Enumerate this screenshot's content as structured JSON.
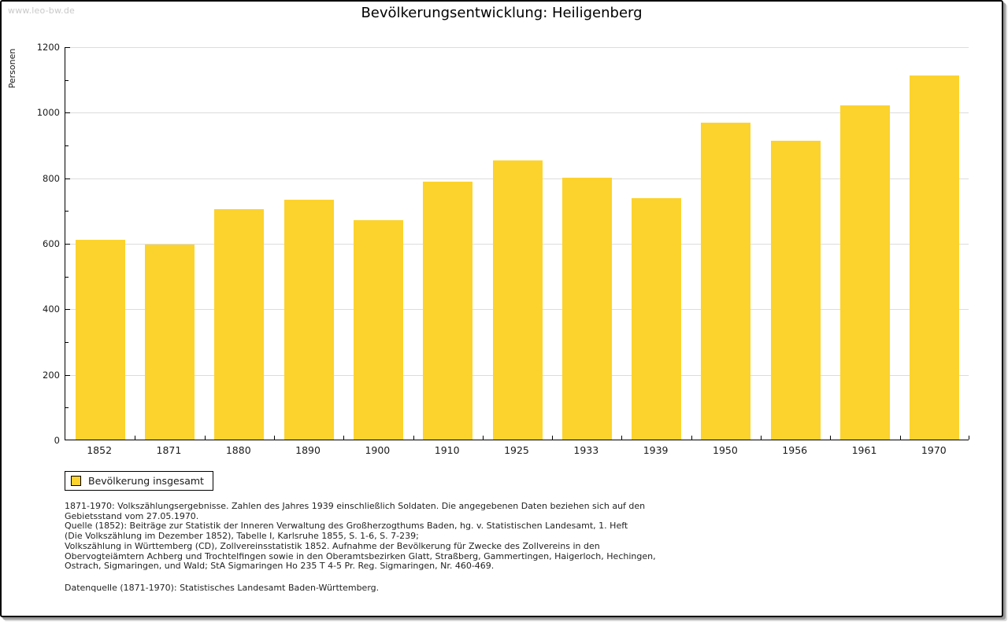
{
  "watermark": "www.leo-bw.de",
  "title": "Bevölkerungsentwicklung: Heiligenberg",
  "chart_data": {
    "type": "bar",
    "title": "Bevölkerungsentwicklung: Heiligenberg",
    "xlabel": "",
    "ylabel": "Personen",
    "ylim": [
      0,
      1200
    ],
    "yticks": [
      0,
      200,
      400,
      600,
      800,
      1000,
      1200
    ],
    "yticks_minor": [
      100,
      300,
      500,
      700,
      900,
      1100
    ],
    "grid": true,
    "legend_position": "bottom-left",
    "categories": [
      "1852",
      "1871",
      "1880",
      "1890",
      "1900",
      "1910",
      "1925",
      "1933",
      "1939",
      "1950",
      "1956",
      "1961",
      "1970"
    ],
    "series": [
      {
        "name": "Bevölkerung insgesamt",
        "values": [
          610,
          595,
          703,
          733,
          670,
          788,
          852,
          800,
          737,
          966,
          911,
          1019,
          1110
        ]
      }
    ]
  },
  "legend": {
    "label": "Bevölkerung insgesamt"
  },
  "footnotes": {
    "lines": [
      "1871-1970: Volkszählungsergebnisse. Zahlen des Jahres 1939 einschließlich Soldaten. Die angegebenen Daten beziehen sich auf den",
      "Gebietsstand vom 27.05.1970.",
      "Quelle (1852): Beiträge zur Statistik der Inneren Verwaltung des Großherzogthums Baden, hg. v. Statistischen Landesamt, 1. Heft",
      "(Die Volkszählung im Dezember 1852), Tabelle I, Karlsruhe 1855, S. 1-6, S. 7-239;",
      "Volkszählung in Württemberg (CD), Zollvereinsstatistik 1852. Aufnahme der Bevölkerung für Zwecke des Zollvereins in den",
      "Obervogteiämtern Achberg und Trochtelfingen sowie in den Oberamtsbezirken Glatt, Straßberg, Gammertingen, Haigerloch, Hechingen,",
      "Ostrach, Sigmaringen, und Wald; StA Sigmaringen Ho 235 T 4-5 Pr. Reg. Sigmaringen, Nr. 460-469."
    ],
    "datasource": "Datenquelle (1871-1970): Statistisches Landesamt Baden-Württemberg."
  },
  "colors": {
    "bar": "#FCD32D",
    "grid": "#DCDCDC",
    "axis": "#000000",
    "watermark": "#C9C9C9",
    "text": "#1A1A1A"
  }
}
